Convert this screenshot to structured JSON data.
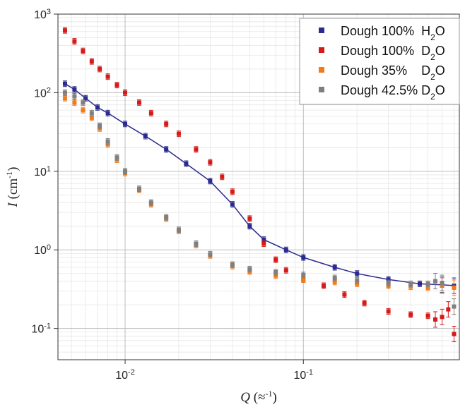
{
  "chart_data": {
    "type": "scatter",
    "x_scale": "log",
    "y_scale": "log",
    "xlim": [
      0.0042,
      0.75
    ],
    "ylim": [
      0.04,
      1000
    ],
    "xlabel": {
      "symbol": "Q",
      "unit": " (≈",
      "unit_sup": "-1",
      "unit_close": ")"
    },
    "ylabel": {
      "symbol": "I",
      "unit": " (cm",
      "unit_sup": "-1",
      "unit_close": ")"
    },
    "x_ticks": [
      {
        "base": "10",
        "exp": "-2",
        "value": 0.01
      },
      {
        "base": "10",
        "exp": "-1",
        "value": 0.1
      }
    ],
    "y_ticks": [
      {
        "base": "10",
        "exp": "-1",
        "value": 0.1
      },
      {
        "base": "10",
        "exp": "0",
        "value": 1
      },
      {
        "base": "10",
        "exp": "1",
        "value": 10
      },
      {
        "base": "10",
        "exp": "2",
        "value": 100
      },
      {
        "base": "10",
        "exp": "3",
        "value": 1000
      }
    ],
    "grid": true,
    "legend_position": "top-right",
    "series": [
      {
        "name": {
          "main": "Dough 100%  H",
          "sub": "2",
          "tail": "O"
        },
        "color": "#2b2a8f",
        "fit_line": true,
        "points": [
          [
            0.0046,
            130
          ],
          [
            0.0052,
            110
          ],
          [
            0.006,
            85
          ],
          [
            0.007,
            65
          ],
          [
            0.008,
            55
          ],
          [
            0.01,
            40
          ],
          [
            0.013,
            28
          ],
          [
            0.017,
            19
          ],
          [
            0.022,
            12.5
          ],
          [
            0.03,
            7.5
          ],
          [
            0.04,
            3.8
          ],
          [
            0.05,
            2.0
          ],
          [
            0.06,
            1.35
          ],
          [
            0.08,
            1.0
          ],
          [
            0.1,
            0.8
          ],
          [
            0.15,
            0.6
          ],
          [
            0.2,
            0.5
          ],
          [
            0.3,
            0.42
          ],
          [
            0.45,
            0.37
          ],
          [
            0.6,
            0.36
          ],
          [
            0.7,
            0.35
          ]
        ]
      },
      {
        "name": {
          "main": "Dough 100%  D",
          "sub": "2",
          "tail": "O"
        },
        "color": "#d51a1a",
        "fit_line": false,
        "points": [
          [
            0.0046,
            620
          ],
          [
            0.0052,
            450
          ],
          [
            0.0058,
            340
          ],
          [
            0.0065,
            250
          ],
          [
            0.0072,
            200
          ],
          [
            0.008,
            160
          ],
          [
            0.009,
            125
          ],
          [
            0.01,
            100
          ],
          [
            0.012,
            75
          ],
          [
            0.014,
            55
          ],
          [
            0.017,
            40
          ],
          [
            0.02,
            30
          ],
          [
            0.025,
            19
          ],
          [
            0.03,
            13
          ],
          [
            0.035,
            8.5
          ],
          [
            0.04,
            5.5
          ],
          [
            0.05,
            2.5
          ],
          [
            0.06,
            1.2
          ],
          [
            0.07,
            0.75
          ],
          [
            0.08,
            0.55
          ],
          [
            0.1,
            0.42
          ],
          [
            0.13,
            0.35
          ],
          [
            0.17,
            0.27
          ],
          [
            0.22,
            0.21
          ],
          [
            0.3,
            0.165
          ],
          [
            0.4,
            0.15
          ],
          [
            0.5,
            0.145
          ],
          [
            0.55,
            0.13
          ],
          [
            0.6,
            0.14
          ],
          [
            0.65,
            0.175
          ],
          [
            0.7,
            0.085
          ]
        ]
      },
      {
        "name": {
          "main": "Dough 35%    D",
          "sub": "2",
          "tail": "O"
        },
        "color": "#ef7b1a",
        "fit_line": false,
        "points": [
          [
            0.0046,
            85
          ],
          [
            0.0052,
            75
          ],
          [
            0.0058,
            60
          ],
          [
            0.0065,
            48
          ],
          [
            0.0072,
            35
          ],
          [
            0.008,
            22
          ],
          [
            0.009,
            14
          ],
          [
            0.01,
            9.5
          ],
          [
            0.012,
            5.8
          ],
          [
            0.014,
            3.8
          ],
          [
            0.017,
            2.5
          ],
          [
            0.02,
            1.75
          ],
          [
            0.025,
            1.15
          ],
          [
            0.03,
            0.85
          ],
          [
            0.04,
            0.62
          ],
          [
            0.05,
            0.53
          ],
          [
            0.07,
            0.47
          ],
          [
            0.1,
            0.42
          ],
          [
            0.15,
            0.39
          ],
          [
            0.2,
            0.37
          ],
          [
            0.3,
            0.35
          ],
          [
            0.4,
            0.34
          ],
          [
            0.5,
            0.33
          ],
          [
            0.6,
            0.35
          ],
          [
            0.7,
            0.33
          ]
        ]
      },
      {
        "name": {
          "main": "Dough 42.5% D",
          "sub": "2",
          "tail": "O"
        },
        "color": "#7f7f7f",
        "fit_line": false,
        "points": [
          [
            0.0046,
            100
          ],
          [
            0.0052,
            90
          ],
          [
            0.0058,
            75
          ],
          [
            0.0065,
            55
          ],
          [
            0.0072,
            38
          ],
          [
            0.008,
            24
          ],
          [
            0.009,
            15
          ],
          [
            0.01,
            10
          ],
          [
            0.012,
            6
          ],
          [
            0.014,
            4
          ],
          [
            0.017,
            2.6
          ],
          [
            0.02,
            1.8
          ],
          [
            0.025,
            1.2
          ],
          [
            0.03,
            0.88
          ],
          [
            0.04,
            0.65
          ],
          [
            0.05,
            0.57
          ],
          [
            0.07,
            0.52
          ],
          [
            0.1,
            0.48
          ],
          [
            0.15,
            0.44
          ],
          [
            0.2,
            0.41
          ],
          [
            0.3,
            0.38
          ],
          [
            0.4,
            0.37
          ],
          [
            0.5,
            0.37
          ],
          [
            0.55,
            0.4
          ],
          [
            0.6,
            0.38
          ],
          [
            0.7,
            0.19
          ]
        ]
      }
    ]
  }
}
